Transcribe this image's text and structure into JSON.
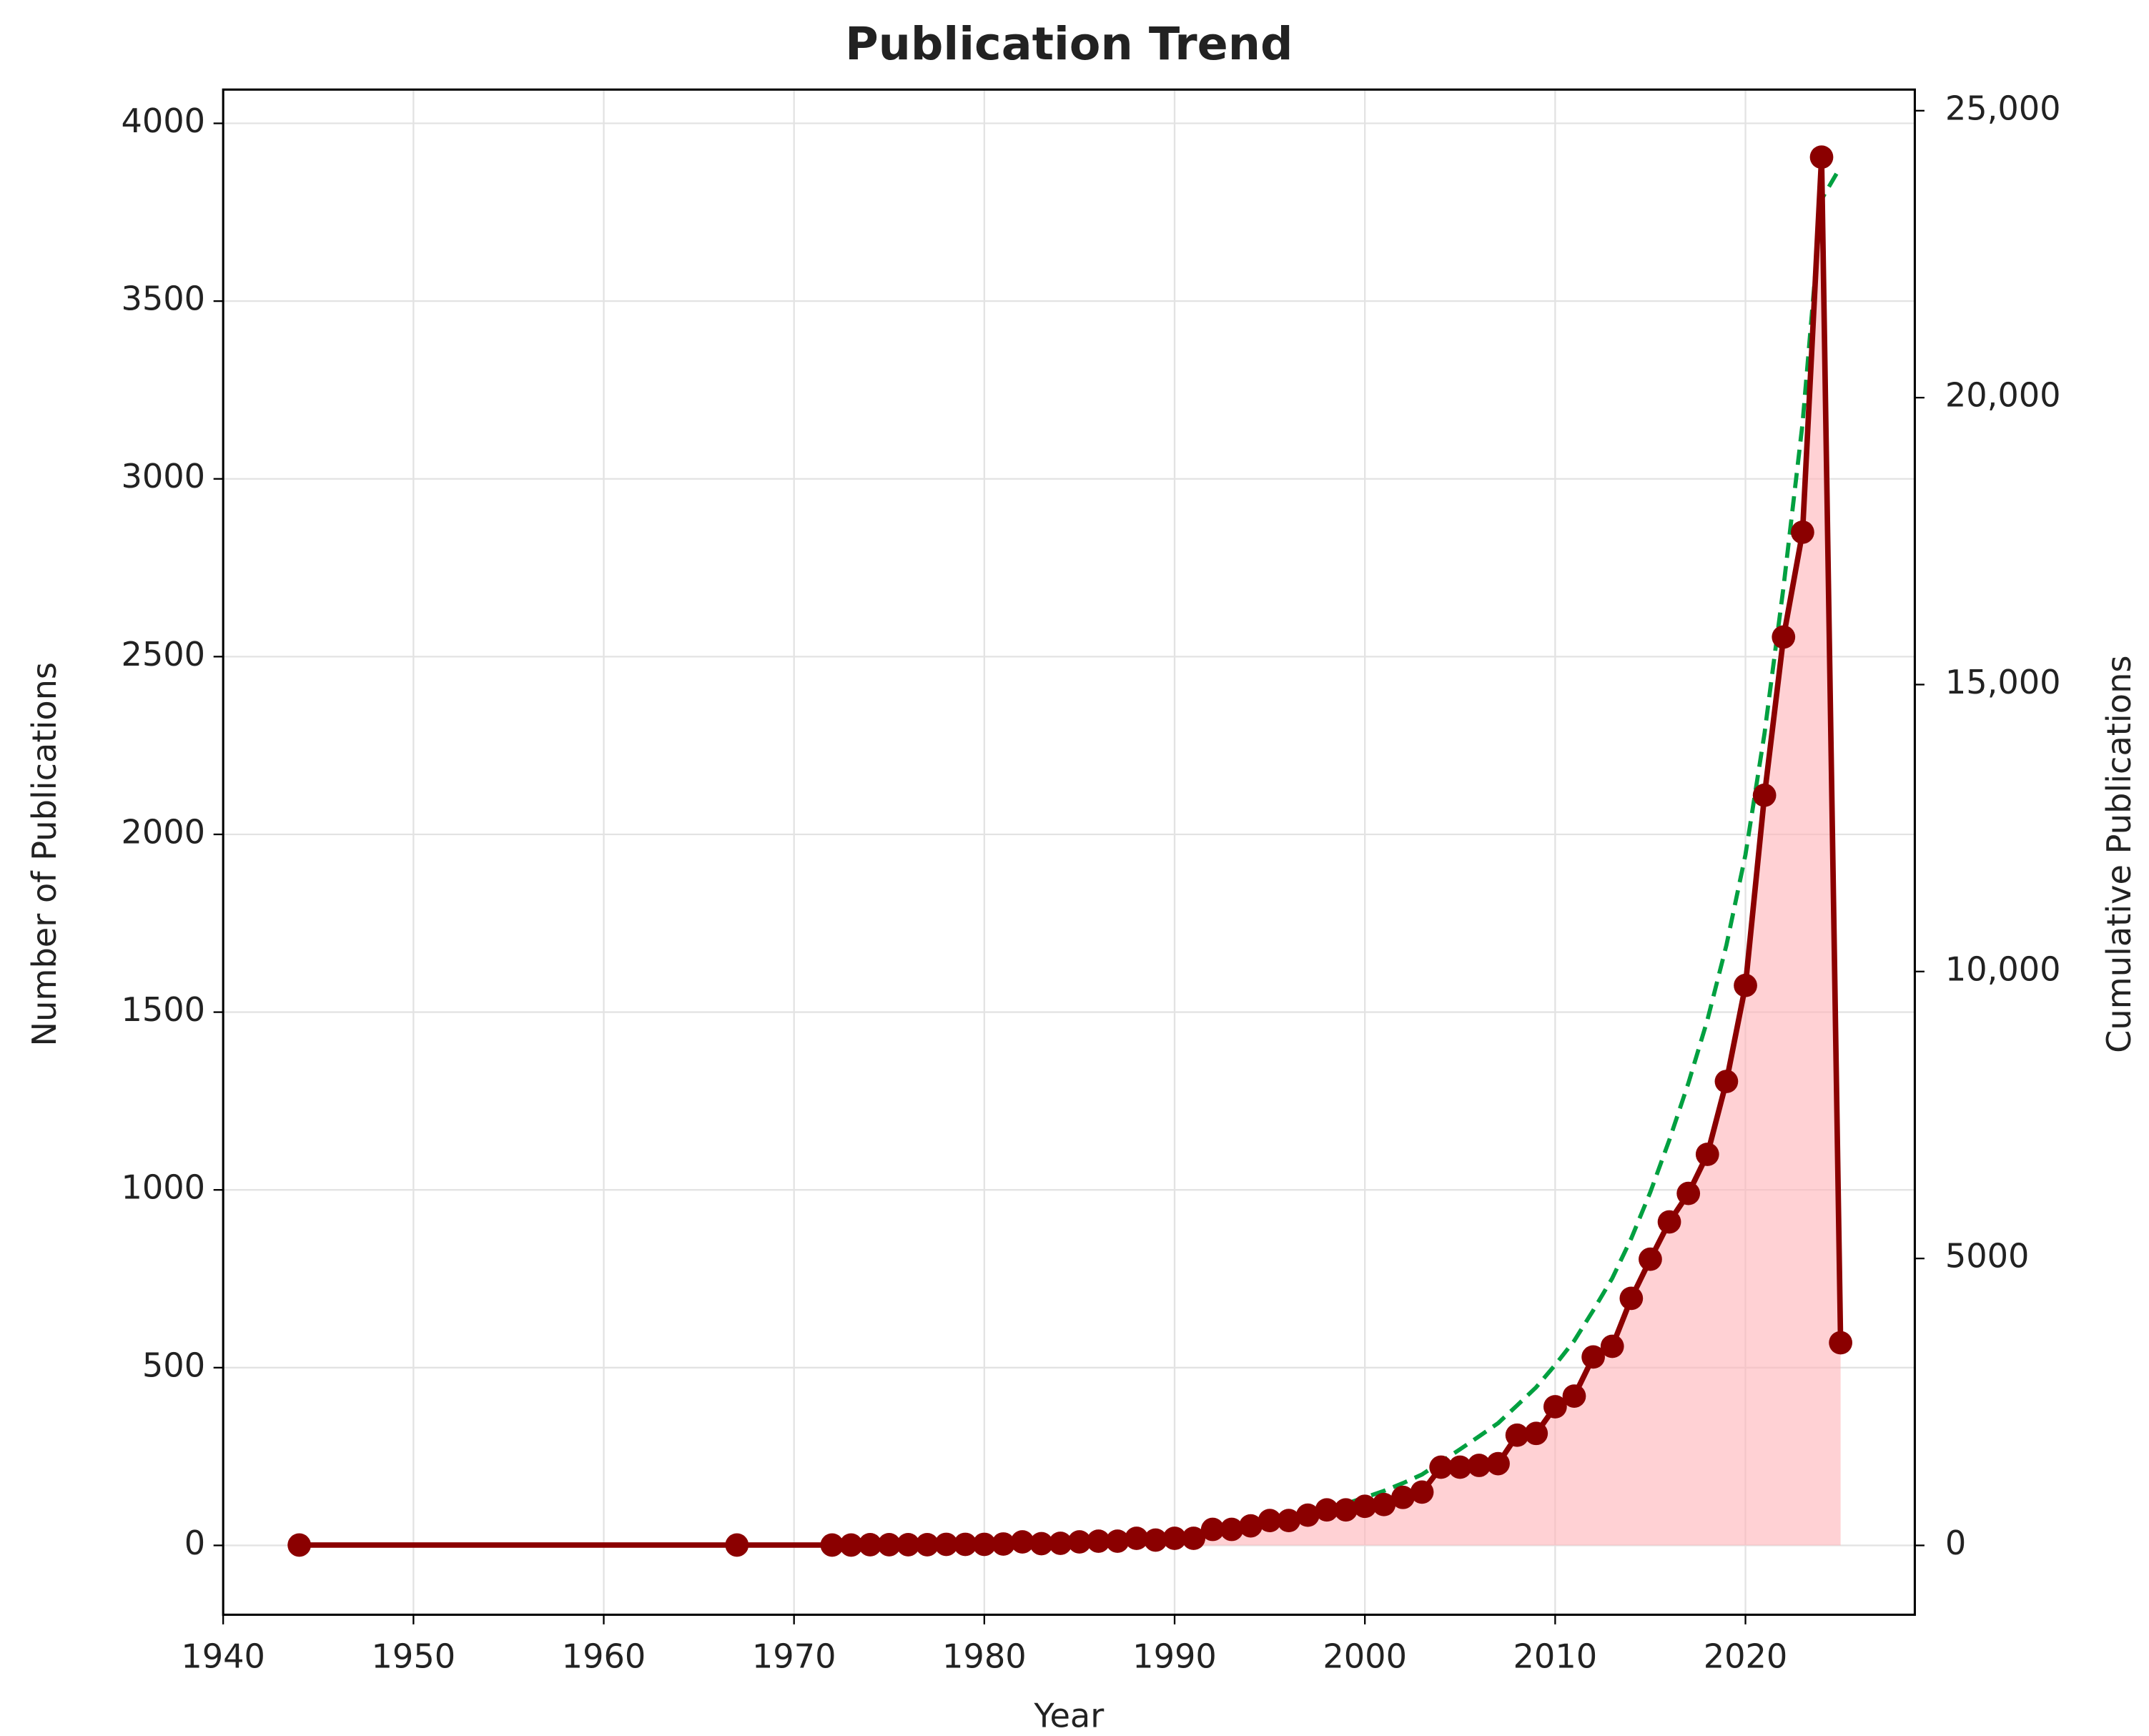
{
  "chart_data": {
    "type": "line",
    "title": "Publication Trend",
    "x_label": "Year",
    "y_label": "Number of Publications",
    "y2_label": "Cumulative Publications",
    "x": [
      1944,
      1967,
      1972,
      1973,
      1974,
      1975,
      1976,
      1977,
      1978,
      1979,
      1980,
      1981,
      1982,
      1983,
      1984,
      1985,
      1986,
      1987,
      1988,
      1989,
      1990,
      1991,
      1992,
      1993,
      1994,
      1995,
      1996,
      1997,
      1998,
      1999,
      2000,
      2001,
      2002,
      2003,
      2004,
      2005,
      2006,
      2007,
      2008,
      2009,
      2010,
      2011,
      2012,
      2013,
      2014,
      2015,
      2016,
      2017,
      2018,
      2019,
      2020,
      2021,
      2022,
      2023,
      2024,
      2025
    ],
    "series": [
      {
        "color": "#8b0000",
        "fill_color": "#ffb3b8",
        "markers": true,
        "line_style": "solid",
        "values": [
          1,
          1,
          1,
          1,
          2,
          2,
          2,
          2,
          3,
          3,
          3,
          4,
          10,
          5,
          6,
          10,
          12,
          12,
          20,
          15,
          20,
          20,
          45,
          45,
          55,
          70,
          70,
          85,
          100,
          100,
          110,
          115,
          135,
          150,
          220,
          220,
          225,
          230,
          310,
          315,
          390,
          420,
          530,
          560,
          695,
          805,
          910,
          990,
          1100,
          1305,
          1575,
          2110,
          2555,
          2850,
          3905,
          570
        ]
      },
      {
        "color": "#00a040",
        "axis": "y2",
        "markers": false,
        "line_style": "dashed",
        "values": [
          1,
          2,
          3,
          4,
          6,
          8,
          10,
          12,
          15,
          18,
          21,
          25,
          35,
          40,
          46,
          56,
          68,
          80,
          100,
          115,
          135,
          155,
          200,
          245,
          300,
          370,
          440,
          525,
          625,
          725,
          835,
          950,
          1085,
          1235,
          1455,
          1675,
          1900,
          2130,
          2440,
          2755,
          3145,
          3565,
          4095,
          4655,
          5350,
          6155,
          7065,
          8055,
          9155,
          10460,
          12035,
          14145,
          16700,
          19550,
          23455,
          24025
        ]
      }
    ],
    "xlim": [
      1940,
      2028.9
    ],
    "xticks": [
      1940,
      1950,
      1960,
      1970,
      1980,
      1990,
      2000,
      2010,
      2020
    ],
    "ylim": [
      -195,
      4095
    ],
    "yticks": [
      0,
      500,
      1000,
      1500,
      2000,
      2500,
      3000,
      3500,
      4000
    ],
    "y2lim": [
      -1208,
      25368
    ],
    "y2ticks": [
      0,
      5000,
      {
        "value": 10000,
        "label": "10,000"
      },
      {
        "value": 15000,
        "label": "15,000"
      },
      {
        "value": 20000,
        "label": "20,000"
      },
      {
        "value": 25000,
        "label": "25,000"
      }
    ],
    "y2_color": "#009a22",
    "grid": true
  }
}
